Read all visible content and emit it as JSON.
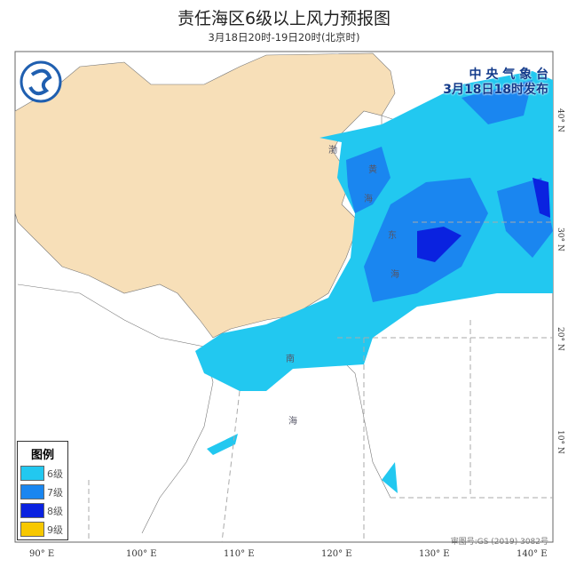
{
  "title": "责任海区6级以上风力预报图",
  "subtitle": "3月18日20时-19日20时(北京时)",
  "issuer": {
    "name": "中 央 气 象 台",
    "issued": "3月18日18时发布"
  },
  "logo": "cma-logo",
  "legend": {
    "title": "图例",
    "items": [
      {
        "label": "6级",
        "color": "#22c8f0"
      },
      {
        "label": "7级",
        "color": "#1a86f0"
      },
      {
        "label": "8级",
        "color": "#0a22e0"
      },
      {
        "label": "9级",
        "color": "#f7c800"
      }
    ]
  },
  "approval": "审图号:GS (2019) 3082号",
  "longitudes": [
    "90° E",
    "100° E",
    "110° E",
    "120° E",
    "130° E",
    "140° E"
  ],
  "latitudes": [
    "40° N",
    "30° N",
    "20° N",
    "10° N"
  ],
  "sea_labels": [
    "渤",
    "黄",
    "海",
    "东",
    "海",
    "南",
    "海"
  ],
  "colors": {
    "china_land": "#f7dfb8",
    "other_land": "#ffffff",
    "sea": "#ffffff",
    "rivers": "#4aa8e0"
  }
}
